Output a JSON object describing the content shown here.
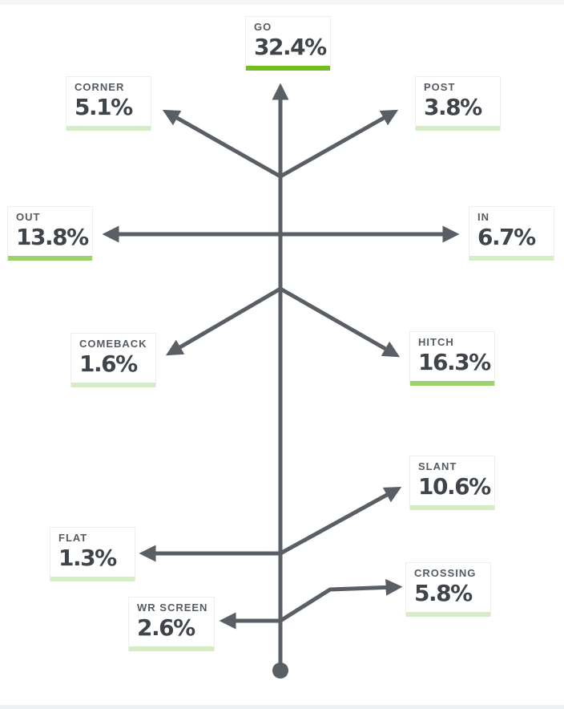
{
  "colors": {
    "line": "#5a5f66",
    "bar_strong": "#72bf1c",
    "bar_medium": "#9dd16c",
    "bar_light": "#d6ecc4"
  },
  "routes": [
    {
      "id": "go",
      "label": "GO",
      "value": "32.4%",
      "weight": "strong"
    },
    {
      "id": "corner",
      "label": "CORNER",
      "value": "5.1%",
      "weight": "light"
    },
    {
      "id": "post",
      "label": "POST",
      "value": "3.8%",
      "weight": "light"
    },
    {
      "id": "out",
      "label": "OUT",
      "value": "13.8%",
      "weight": "medium"
    },
    {
      "id": "in",
      "label": "IN",
      "value": "6.7%",
      "weight": "light"
    },
    {
      "id": "comeback",
      "label": "COMEBACK",
      "value": "1.6%",
      "weight": "light"
    },
    {
      "id": "hitch",
      "label": "HITCH",
      "value": "16.3%",
      "weight": "medium"
    },
    {
      "id": "slant",
      "label": "SLANT",
      "value": "10.6%",
      "weight": "light"
    },
    {
      "id": "flat",
      "label": "FLAT",
      "value": "1.3%",
      "weight": "light"
    },
    {
      "id": "crossing",
      "label": "CROSSING",
      "value": "5.8%",
      "weight": "light"
    },
    {
      "id": "wr-screen",
      "label": "WR SCREEN",
      "value": "2.6%",
      "weight": "light"
    }
  ]
}
